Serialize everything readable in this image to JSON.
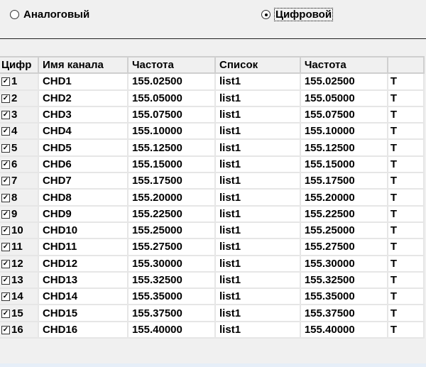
{
  "mode": {
    "analog_label": "Аналоговый",
    "digital_label": "Цифровой",
    "selected": "digital"
  },
  "table": {
    "headers": [
      "Цифр",
      "Имя канала",
      "Частота",
      "Список",
      "Частота",
      ""
    ],
    "rows": [
      {
        "num": "1",
        "name": "CHD1",
        "freq": "155.02500",
        "list": "list1",
        "freq2": "155.02500",
        "last": "T",
        "checked": true
      },
      {
        "num": "2",
        "name": "CHD2",
        "freq": "155.05000",
        "list": "list1",
        "freq2": "155.05000",
        "last": "T",
        "checked": true
      },
      {
        "num": "3",
        "name": "CHD3",
        "freq": "155.07500",
        "list": "list1",
        "freq2": "155.07500",
        "last": "T",
        "checked": true
      },
      {
        "num": "4",
        "name": "CHD4",
        "freq": "155.10000",
        "list": "list1",
        "freq2": "155.10000",
        "last": "T",
        "checked": true
      },
      {
        "num": "5",
        "name": "CHD5",
        "freq": "155.12500",
        "list": "list1",
        "freq2": "155.12500",
        "last": "T",
        "checked": true
      },
      {
        "num": "6",
        "name": "CHD6",
        "freq": "155.15000",
        "list": "list1",
        "freq2": "155.15000",
        "last": "T",
        "checked": true
      },
      {
        "num": "7",
        "name": "CHD7",
        "freq": "155.17500",
        "list": "list1",
        "freq2": "155.17500",
        "last": "T",
        "checked": true
      },
      {
        "num": "8",
        "name": "CHD8",
        "freq": "155.20000",
        "list": "list1",
        "freq2": "155.20000",
        "last": "T",
        "checked": true
      },
      {
        "num": "9",
        "name": "CHD9",
        "freq": "155.22500",
        "list": "list1",
        "freq2": "155.22500",
        "last": "T",
        "checked": true
      },
      {
        "num": "10",
        "name": "CHD10",
        "freq": "155.25000",
        "list": "list1",
        "freq2": "155.25000",
        "last": "T",
        "checked": true
      },
      {
        "num": "11",
        "name": "CHD11",
        "freq": "155.27500",
        "list": "list1",
        "freq2": "155.27500",
        "last": "T",
        "checked": true
      },
      {
        "num": "12",
        "name": "CHD12",
        "freq": "155.30000",
        "list": "list1",
        "freq2": "155.30000",
        "last": "T",
        "checked": true
      },
      {
        "num": "13",
        "name": "CHD13",
        "freq": "155.32500",
        "list": "list1",
        "freq2": "155.32500",
        "last": "T",
        "checked": true
      },
      {
        "num": "14",
        "name": "CHD14",
        "freq": "155.35000",
        "list": "list1",
        "freq2": "155.35000",
        "last": "T",
        "checked": true
      },
      {
        "num": "15",
        "name": "CHD15",
        "freq": "155.37500",
        "list": "list1",
        "freq2": "155.37500",
        "last": "T",
        "checked": true
      },
      {
        "num": "16",
        "name": "CHD16",
        "freq": "155.40000",
        "list": "list1",
        "freq2": "155.40000",
        "last": "T",
        "checked": true
      }
    ]
  }
}
